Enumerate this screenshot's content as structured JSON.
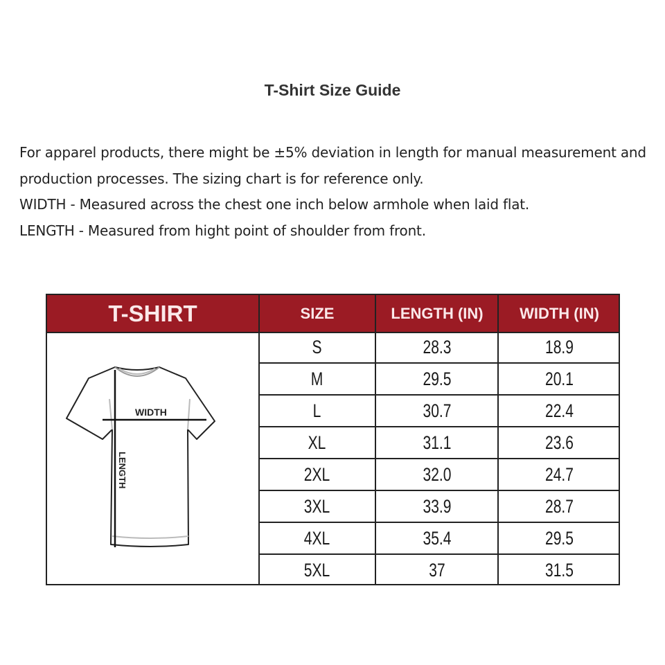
{
  "title": "T-Shirt Size Guide",
  "description": [
    "For apparel products, there might be ±5% deviation in length for manual measurement and production processes. The sizing chart is for reference only.",
    "WIDTH - Measured across the chest one inch below armhole when laid flat.",
    "LENGTH - Measured from hight point of shoulder from front."
  ],
  "colors": {
    "header_bg": "#9b1b24",
    "header_text": "#fbe9ea"
  },
  "table": {
    "headers": [
      "T-SHIRT",
      "SIZE",
      "LENGTH (IN)",
      "WIDTH (IN)"
    ],
    "diagram_labels": {
      "width": "WIDTH",
      "length": "LENGTH"
    },
    "rows": [
      {
        "size": "S",
        "length": "28.3",
        "width": "18.9"
      },
      {
        "size": "M",
        "length": "29.5",
        "width": "20.1"
      },
      {
        "size": "L",
        "length": "30.7",
        "width": "22.4"
      },
      {
        "size": "XL",
        "length": "31.1",
        "width": "23.6"
      },
      {
        "size": "2XL",
        "length": "32.0",
        "width": "24.7"
      },
      {
        "size": "3XL",
        "length": "33.9",
        "width": "28.7"
      },
      {
        "size": "4XL",
        "length": "35.4",
        "width": "29.5"
      },
      {
        "size": "5XL",
        "length": "37",
        "width": "31.5"
      }
    ]
  }
}
